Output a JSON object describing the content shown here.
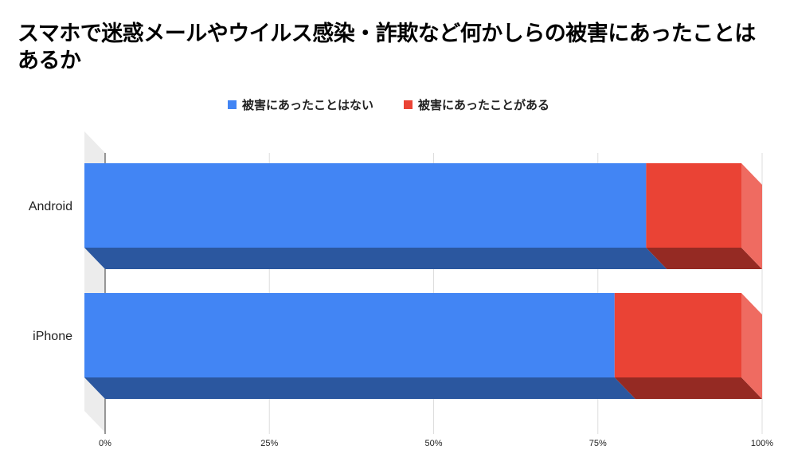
{
  "title": "スマホで迷惑メールやウイルス感染・詐欺など何かしらの被害にあったことはあるか",
  "colors": {
    "series1": "#4285f4",
    "series1_shade": "#2b579f",
    "series2": "#ea4335",
    "series2_shade": "#952a23",
    "series2_side": "#ef6b61",
    "wall": "#ececec"
  },
  "chart_data": {
    "type": "bar",
    "orientation": "horizontal",
    "stacked": "percent",
    "style": "3d",
    "title": "スマホで迷惑メールやウイルス感染・詐欺など何かしらの被害にあったことはあるか",
    "categories": [
      "Android",
      "iPhone"
    ],
    "series": [
      {
        "name": "被害にあったことはない",
        "values": [
          85.5,
          80.7
        ]
      },
      {
        "name": "被害にあったことがある",
        "values": [
          14.5,
          19.3
        ]
      }
    ],
    "xlim": [
      0,
      100
    ],
    "x_ticks": [
      "0%",
      "25%",
      "50%",
      "75%",
      "100%"
    ],
    "grid": true,
    "legend_position": "top"
  }
}
